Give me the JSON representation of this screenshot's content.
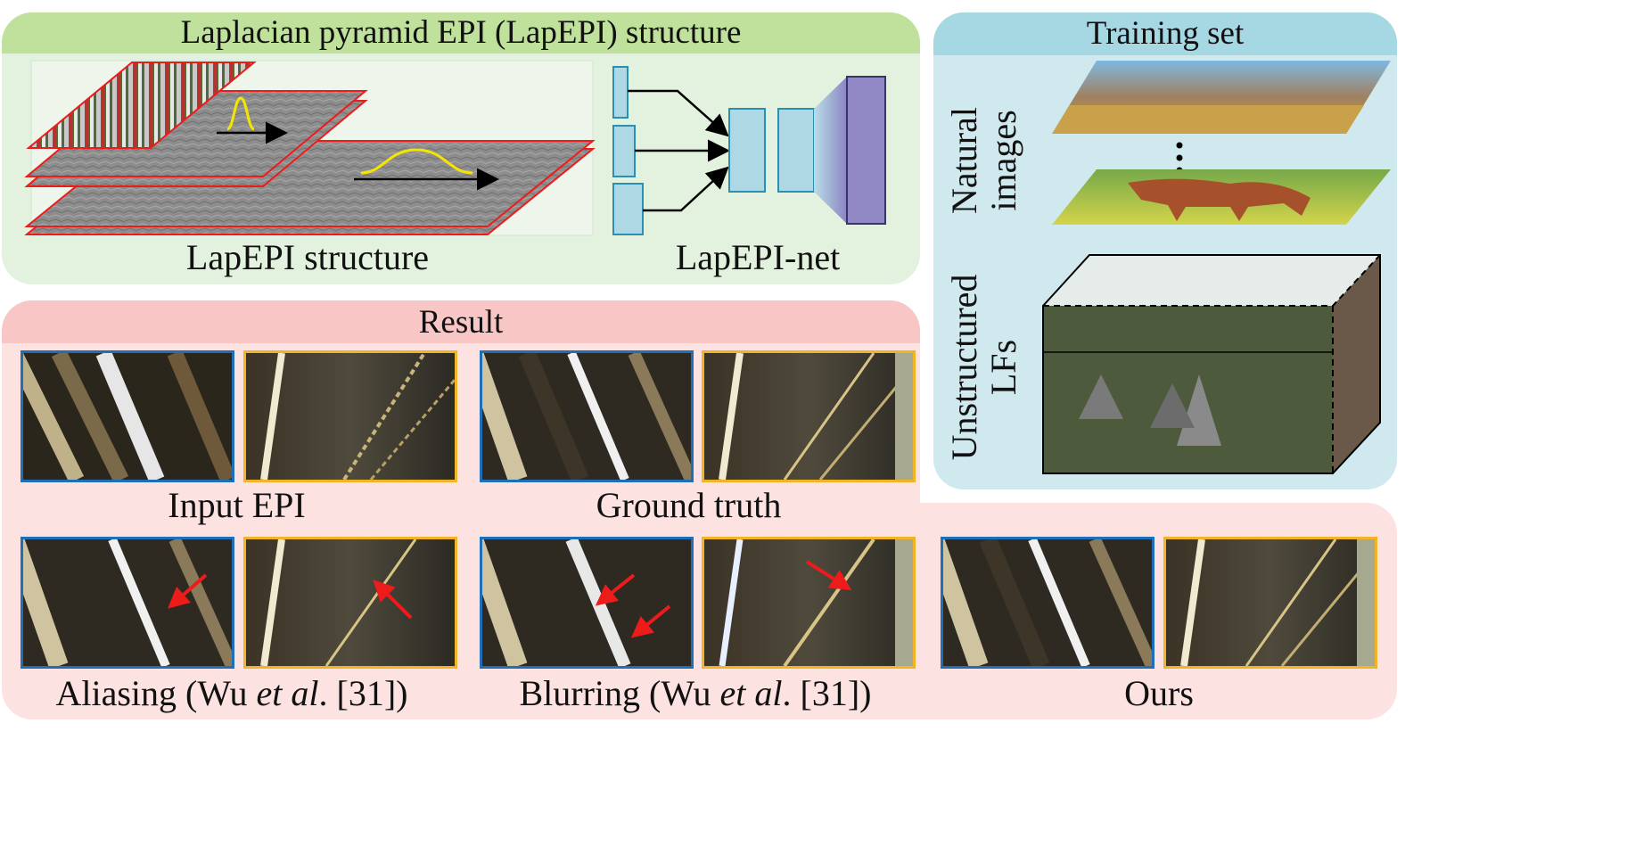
{
  "lapepi": {
    "title": "Laplacian pyramid EPI (LapEPI) structure",
    "structure_label": "LapEPI structure",
    "net_label": "LapEPI-net"
  },
  "training": {
    "title": "Training set",
    "natural_label_1": "Natural",
    "natural_label_2": "images",
    "lf_label_1": "Unstructured",
    "lf_label_2": "LFs"
  },
  "result": {
    "title": "Result",
    "input_label": "Input EPI",
    "gt_label": "Ground truth",
    "aliasing_prefix": "Aliasing (Wu ",
    "aliasing_italic": "et al",
    "aliasing_suffix": ". [31])",
    "blurring_prefix": "Blurring (Wu ",
    "blurring_italic": "et al",
    "blurring_suffix": ". [31])",
    "ours_label": "Ours"
  },
  "colors": {
    "lapepi_bg": "#e2f2df",
    "lapepi_head": "#bfe19c",
    "training_bg": "#cfe9ef",
    "training_head": "#a6d8e4",
    "result_bg": "#fde2e2",
    "result_head": "#f9c6c6",
    "blue_frame": "#1f6fb8",
    "orange_frame": "#f2b325",
    "red_arrow": "#ee1b1b",
    "gaussian": "#f5e600"
  }
}
